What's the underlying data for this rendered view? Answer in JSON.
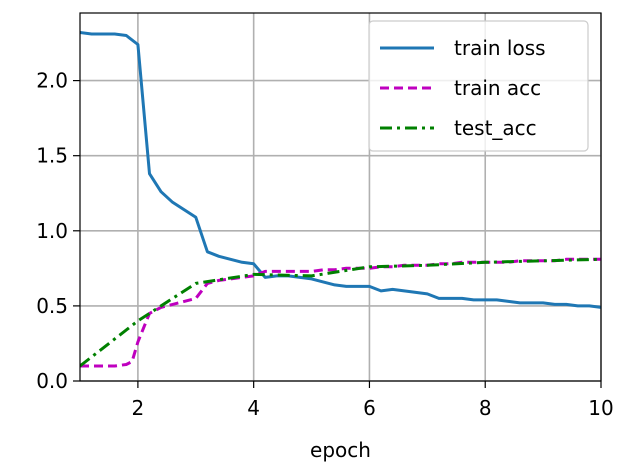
{
  "chart_data": {
    "type": "line",
    "title": "",
    "xlabel": "epoch",
    "ylabel": "",
    "xlim": [
      1,
      10
    ],
    "ylim": [
      0,
      2.45
    ],
    "xticks": [
      2,
      4,
      6,
      8,
      10
    ],
    "yticks": [
      0.0,
      0.5,
      1.0,
      1.5,
      2.0
    ],
    "xtick_labels": [
      "2",
      "4",
      "6",
      "8",
      "10"
    ],
    "ytick_labels": [
      "0.0",
      "0.5",
      "1.0",
      "1.5",
      "2.0"
    ],
    "grid": true,
    "legend_position": "top-right",
    "series": [
      {
        "name": "train loss",
        "color": "#1f77b4",
        "dash": "solid",
        "x": [
          1.0,
          1.2,
          1.4,
          1.6,
          1.8,
          2.0,
          2.2,
          2.4,
          2.6,
          2.8,
          3.0,
          3.2,
          3.4,
          3.6,
          3.8,
          4.0,
          4.2,
          4.4,
          4.6,
          4.8,
          5.0,
          5.2,
          5.4,
          5.6,
          5.8,
          6.0,
          6.2,
          6.4,
          6.6,
          6.8,
          7.0,
          7.2,
          7.4,
          7.6,
          7.8,
          8.0,
          8.2,
          8.4,
          8.6,
          8.8,
          9.0,
          9.2,
          9.4,
          9.6,
          9.8,
          10.0
        ],
        "y": [
          2.32,
          2.31,
          2.31,
          2.31,
          2.3,
          2.24,
          1.38,
          1.26,
          1.19,
          1.14,
          1.09,
          0.86,
          0.83,
          0.81,
          0.79,
          0.78,
          0.69,
          0.7,
          0.7,
          0.69,
          0.68,
          0.66,
          0.64,
          0.63,
          0.63,
          0.63,
          0.6,
          0.61,
          0.6,
          0.59,
          0.58,
          0.55,
          0.55,
          0.55,
          0.54,
          0.54,
          0.54,
          0.53,
          0.52,
          0.52,
          0.52,
          0.51,
          0.51,
          0.5,
          0.5,
          0.49
        ]
      },
      {
        "name": "train acc",
        "color": "#bf00bf",
        "dash": "dashed",
        "x": [
          1.0,
          1.2,
          1.4,
          1.6,
          1.8,
          1.9,
          2.0,
          2.2,
          2.4,
          2.6,
          2.8,
          3.0,
          3.2,
          3.4,
          3.6,
          3.8,
          4.0,
          4.2,
          4.4,
          4.6,
          4.8,
          5.0,
          5.2,
          5.4,
          5.6,
          5.8,
          6.0,
          6.2,
          6.4,
          6.6,
          6.8,
          7.0,
          7.2,
          7.4,
          7.6,
          7.8,
          8.0,
          8.2,
          8.4,
          8.6,
          8.8,
          9.0,
          9.2,
          9.4,
          9.6,
          9.8,
          10.0
        ],
        "y": [
          0.1,
          0.1,
          0.1,
          0.1,
          0.11,
          0.13,
          0.26,
          0.45,
          0.49,
          0.51,
          0.53,
          0.55,
          0.65,
          0.67,
          0.68,
          0.69,
          0.7,
          0.73,
          0.73,
          0.73,
          0.73,
          0.73,
          0.74,
          0.74,
          0.75,
          0.75,
          0.75,
          0.76,
          0.76,
          0.77,
          0.77,
          0.77,
          0.78,
          0.78,
          0.79,
          0.79,
          0.79,
          0.79,
          0.79,
          0.8,
          0.8,
          0.8,
          0.8,
          0.81,
          0.81,
          0.81,
          0.81
        ]
      },
      {
        "name": "test_acc",
        "color": "#008000",
        "dash": "dashdot",
        "x": [
          1,
          2,
          3,
          4,
          5,
          6,
          7,
          8,
          9,
          10
        ],
        "y": [
          0.1,
          0.4,
          0.65,
          0.71,
          0.7,
          0.76,
          0.77,
          0.79,
          0.8,
          0.81
        ]
      }
    ]
  }
}
